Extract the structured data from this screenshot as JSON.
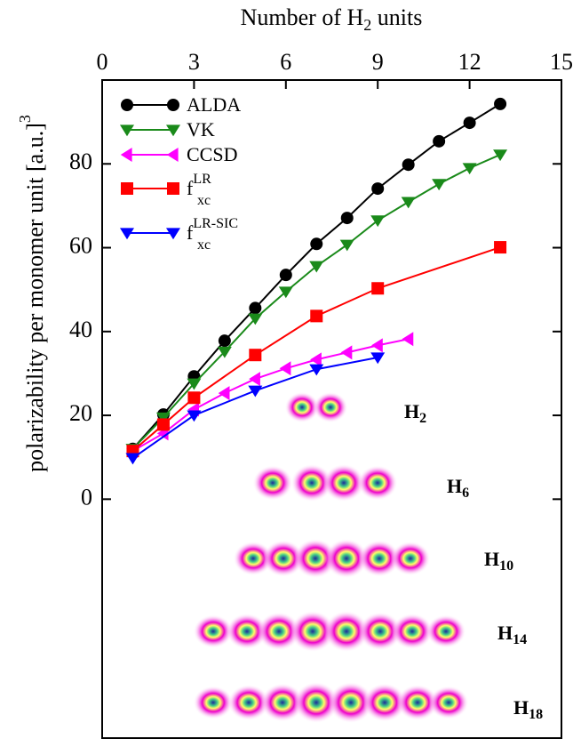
{
  "chart_data": {
    "type": "line",
    "xlabel": {
      "text": "Number of H",
      "sub": "2",
      "after": " units"
    },
    "ylabel": {
      "text": "polarizability per monomer unit [a.u.]",
      "sup": "3"
    },
    "xlim": [
      0,
      15
    ],
    "xticks": [
      0,
      3,
      6,
      9,
      12,
      15
    ],
    "ylim": [
      -57,
      100
    ],
    "yticks": [
      0,
      20,
      40,
      60,
      80
    ],
    "legend": "upper left",
    "series": [
      {
        "name": "ALDA",
        "color": "#000000",
        "marker": "circle",
        "x": [
          1,
          2,
          3,
          4,
          5,
          6,
          7,
          8,
          9,
          10,
          11,
          12,
          13
        ],
        "values": [
          12,
          20.2,
          29.3,
          37.8,
          45.6,
          53.5,
          60.9,
          67.1,
          74.1,
          79.8,
          85.4,
          89.8,
          94.3
        ]
      },
      {
        "name": "VK",
        "color": "#1a8a1a",
        "marker": "triangle-down",
        "x": [
          1,
          2,
          3,
          4,
          5,
          6,
          7,
          8,
          9,
          10,
          11,
          12,
          13
        ],
        "values": [
          12,
          19.5,
          27.6,
          35.2,
          43.1,
          49.5,
          55.6,
          60.7,
          66.5,
          70.9,
          75.2,
          79,
          82.2
        ]
      },
      {
        "name": "CCSD",
        "color": "#ff00ff",
        "marker": "triangle-left",
        "x": [
          1,
          2,
          3,
          4,
          5,
          6,
          7,
          8,
          9,
          10
        ],
        "values": [
          11.5,
          15.7,
          21.4,
          25.3,
          28.7,
          31.2,
          33.3,
          35,
          36.7,
          38.2
        ]
      },
      {
        "name": "f",
        "name_sub": "xc",
        "name_sup": "LR",
        "color": "#ff0000",
        "marker": "square",
        "x": [
          1,
          2,
          3,
          5,
          7,
          9,
          13
        ],
        "values": [
          11.5,
          17.8,
          24.2,
          34.4,
          43.7,
          50.3,
          60.1
        ]
      },
      {
        "name": "f",
        "name_sub": "xc",
        "name_sup": "LR-SIC",
        "color": "#0000ff",
        "marker": "triangle-down",
        "x": [
          1,
          3,
          5,
          7,
          9
        ],
        "values": [
          9.8,
          20,
          25.9,
          31,
          33.8
        ]
      }
    ],
    "annotations": [
      {
        "text": "H",
        "sub": "2"
      },
      {
        "text": "H",
        "sub": "6"
      },
      {
        "text": "H",
        "sub": "10"
      },
      {
        "text": "H",
        "sub": "14"
      },
      {
        "text": "H",
        "sub": "18"
      }
    ]
  }
}
